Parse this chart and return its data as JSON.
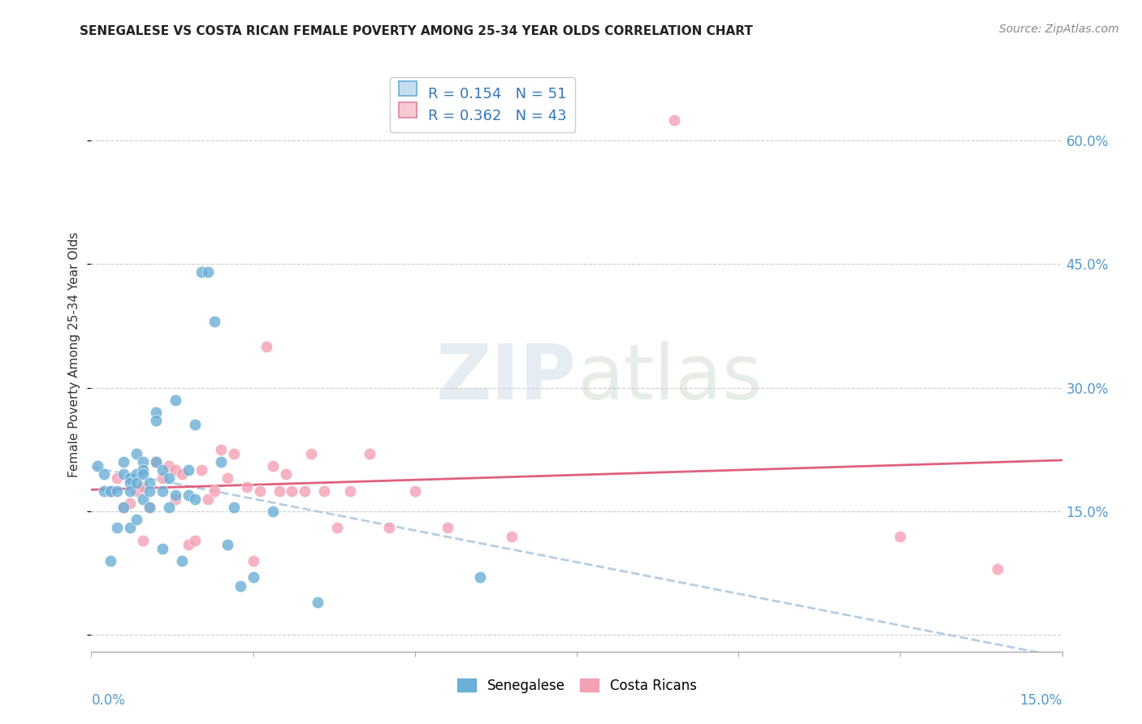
{
  "title": "SENEGALESE VS COSTA RICAN FEMALE POVERTY AMONG 25-34 YEAR OLDS CORRELATION CHART",
  "source": "Source: ZipAtlas.com",
  "ylabel": "Female Poverty Among 25-34 Year Olds",
  "xlim": [
    0.0,
    0.15
  ],
  "ylim": [
    -0.02,
    0.7
  ],
  "yticks": [
    0.0,
    0.15,
    0.3,
    0.45,
    0.6
  ],
  "ytick_labels": [
    "",
    "15.0%",
    "30.0%",
    "45.0%",
    "60.0%"
  ],
  "blue_color": "#6baed6",
  "pink_color": "#f4a0b5",
  "blue_line_color": "#aec9e0",
  "pink_line_color": "#e06080",
  "watermark": "ZIPatlas",
  "R_sen": 0.154,
  "N_sen": 51,
  "R_cos": 0.362,
  "N_cos": 43,
  "senegalese_x": [
    0.001,
    0.002,
    0.002,
    0.003,
    0.003,
    0.004,
    0.004,
    0.005,
    0.005,
    0.005,
    0.006,
    0.006,
    0.006,
    0.006,
    0.007,
    0.007,
    0.007,
    0.007,
    0.008,
    0.008,
    0.008,
    0.008,
    0.009,
    0.009,
    0.009,
    0.01,
    0.01,
    0.01,
    0.011,
    0.011,
    0.011,
    0.012,
    0.012,
    0.013,
    0.013,
    0.014,
    0.015,
    0.015,
    0.016,
    0.016,
    0.017,
    0.018,
    0.019,
    0.02,
    0.021,
    0.022,
    0.023,
    0.025,
    0.028,
    0.035,
    0.06
  ],
  "senegalese_y": [
    0.205,
    0.195,
    0.175,
    0.175,
    0.09,
    0.175,
    0.13,
    0.21,
    0.195,
    0.155,
    0.19,
    0.185,
    0.175,
    0.13,
    0.22,
    0.195,
    0.185,
    0.14,
    0.21,
    0.2,
    0.195,
    0.165,
    0.185,
    0.175,
    0.155,
    0.27,
    0.26,
    0.21,
    0.2,
    0.175,
    0.105,
    0.19,
    0.155,
    0.285,
    0.17,
    0.09,
    0.2,
    0.17,
    0.165,
    0.255,
    0.44,
    0.44,
    0.38,
    0.21,
    0.11,
    0.155,
    0.06,
    0.07,
    0.15,
    0.04,
    0.07
  ],
  "costarican_x": [
    0.003,
    0.004,
    0.005,
    0.006,
    0.007,
    0.008,
    0.008,
    0.009,
    0.01,
    0.011,
    0.012,
    0.013,
    0.013,
    0.014,
    0.015,
    0.016,
    0.017,
    0.018,
    0.019,
    0.02,
    0.021,
    0.022,
    0.024,
    0.025,
    0.026,
    0.027,
    0.028,
    0.029,
    0.03,
    0.031,
    0.033,
    0.034,
    0.036,
    0.038,
    0.04,
    0.043,
    0.046,
    0.05,
    0.055,
    0.065,
    0.09,
    0.125,
    0.14
  ],
  "costarican_y": [
    0.175,
    0.19,
    0.155,
    0.16,
    0.175,
    0.18,
    0.115,
    0.155,
    0.21,
    0.19,
    0.205,
    0.165,
    0.2,
    0.195,
    0.11,
    0.115,
    0.2,
    0.165,
    0.175,
    0.225,
    0.19,
    0.22,
    0.18,
    0.09,
    0.175,
    0.35,
    0.205,
    0.175,
    0.195,
    0.175,
    0.175,
    0.22,
    0.175,
    0.13,
    0.175,
    0.22,
    0.13,
    0.175,
    0.13,
    0.12,
    0.625,
    0.12,
    0.08
  ]
}
